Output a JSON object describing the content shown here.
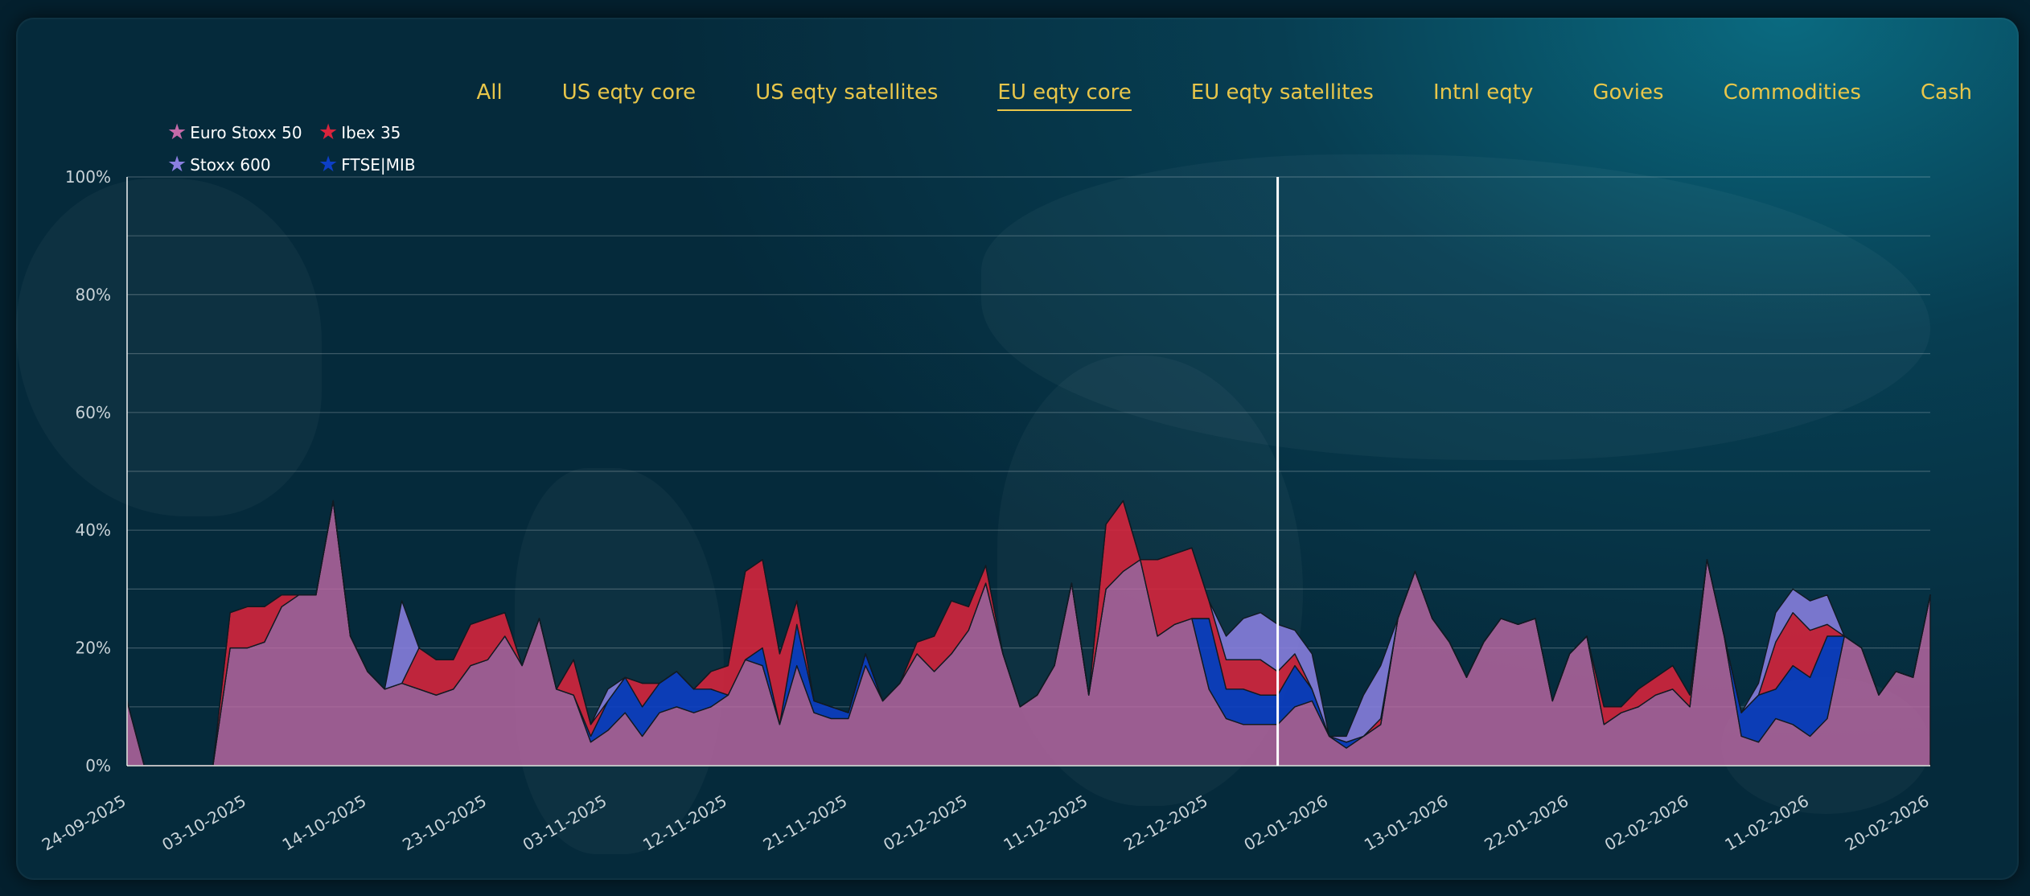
{
  "tabs": [
    {
      "label": "All",
      "active": false
    },
    {
      "label": "US eqty core",
      "active": false
    },
    {
      "label": "US eqty satellites",
      "active": false
    },
    {
      "label": "EU eqty core",
      "active": true
    },
    {
      "label": "EU eqty satellites",
      "active": false
    },
    {
      "label": "Intnl eqty",
      "active": false
    },
    {
      "label": "Govies",
      "active": false
    },
    {
      "label": "Commodities",
      "active": false
    },
    {
      "label": "Cash",
      "active": false
    }
  ],
  "colors": {
    "tab_text": "#e8c64a",
    "euro_stoxx_50": "#c46aa8",
    "ibex_35": "#d9243c",
    "stoxx_600": "#8a7fe0",
    "ftse_mib": "#0d3fc6",
    "marker_line": "#ffffff"
  },
  "chart_data": {
    "type": "area",
    "stacked": true,
    "ylim": [
      0,
      100
    ],
    "y_ticks": [
      "0%",
      "20%",
      "40%",
      "60%",
      "80%",
      "100%"
    ],
    "x_tick_labels": [
      "24-09-2025",
      "03-10-2025",
      "14-10-2025",
      "23-10-2025",
      "03-11-2025",
      "12-11-2025",
      "21-11-2025",
      "02-12-2025",
      "11-12-2025",
      "22-12-2025",
      "02-01-2026",
      "13-01-2026",
      "22-01-2026",
      "02-02-2026",
      "11-02-2026",
      "20-02-2026"
    ],
    "vertical_marker": "02-01-2026",
    "legend": [
      {
        "name": "Euro Stoxx 50",
        "icon": "star"
      },
      {
        "name": "Ibex 35",
        "icon": "star"
      },
      {
        "name": "Stoxx 600",
        "icon": "star"
      },
      {
        "name": "FTSE|MIB",
        "icon": "star"
      }
    ],
    "series": [
      {
        "name": "Euro Stoxx 50",
        "values": [
          11,
          0,
          0,
          0,
          0,
          0,
          20,
          20,
          21,
          27,
          29,
          29,
          45,
          22,
          16,
          13,
          14,
          13,
          12,
          13,
          17,
          18,
          22,
          17,
          25,
          13,
          12,
          4,
          6,
          9,
          5,
          9,
          10,
          9,
          10,
          12,
          18,
          17,
          7,
          17,
          9,
          8,
          8,
          17,
          11,
          14,
          19,
          16,
          19,
          23,
          31,
          19,
          10,
          12,
          17,
          31,
          12,
          30,
          33,
          35,
          22,
          24,
          25,
          13,
          8,
          7,
          7,
          7,
          10,
          11,
          5,
          3,
          5,
          7,
          25,
          33,
          25,
          21,
          15,
          21,
          25,
          24,
          25,
          11,
          19,
          22,
          7,
          9,
          10,
          12,
          13,
          10,
          35,
          22,
          5,
          4,
          8,
          7,
          5,
          8,
          22,
          20,
          12,
          16,
          15,
          29
        ]
      },
      {
        "name": "FTSE|MIB",
        "values": [
          0,
          0,
          0,
          0,
          0,
          0,
          0,
          0,
          0,
          0,
          0,
          0,
          0,
          0,
          0,
          0,
          0,
          0,
          0,
          0,
          0,
          0,
          0,
          0,
          0,
          0,
          0,
          1,
          5,
          6,
          5,
          5,
          6,
          4,
          3,
          0,
          0,
          3,
          0,
          7,
          2,
          2,
          1,
          2,
          0,
          0,
          0,
          0,
          0,
          0,
          0,
          0,
          0,
          0,
          0,
          0,
          0,
          0,
          0,
          0,
          0,
          0,
          0,
          12,
          5,
          6,
          5,
          5,
          7,
          2,
          0,
          1,
          0,
          0,
          0,
          0,
          0,
          0,
          0,
          0,
          0,
          0,
          0,
          0,
          0,
          0,
          0,
          0,
          0,
          0,
          0,
          0,
          0,
          0,
          4,
          8,
          5,
          10,
          10,
          14,
          0,
          0,
          0,
          0,
          0,
          0
        ]
      },
      {
        "name": "Ibex 35",
        "values": [
          0,
          0,
          0,
          0,
          0,
          0,
          6,
          7,
          6,
          2,
          0,
          0,
          0,
          0,
          0,
          0,
          0,
          7,
          6,
          5,
          7,
          7,
          4,
          0,
          0,
          0,
          6,
          2,
          0,
          0,
          4,
          0,
          0,
          0,
          3,
          5,
          15,
          15,
          12,
          4,
          0,
          0,
          0,
          0,
          0,
          0,
          2,
          6,
          9,
          4,
          3,
          0,
          0,
          0,
          0,
          0,
          0,
          11,
          12,
          0,
          13,
          12,
          12,
          3,
          5,
          5,
          6,
          4,
          2,
          0,
          0,
          0,
          0,
          1,
          0,
          0,
          0,
          0,
          0,
          0,
          0,
          0,
          0,
          0,
          0,
          0,
          3,
          1,
          3,
          3,
          4,
          2,
          0,
          0,
          0,
          0,
          8,
          9,
          8,
          2,
          0,
          0,
          0,
          0,
          0,
          0
        ]
      },
      {
        "name": "Stoxx 600",
        "values": [
          0,
          0,
          0,
          0,
          0,
          0,
          0,
          0,
          0,
          0,
          0,
          0,
          0,
          0,
          0,
          0,
          14,
          0,
          0,
          0,
          0,
          0,
          0,
          0,
          0,
          0,
          0,
          0,
          2,
          0,
          0,
          0,
          0,
          0,
          0,
          0,
          0,
          0,
          0,
          0,
          0,
          0,
          0,
          0,
          0,
          0,
          0,
          0,
          0,
          0,
          0,
          0,
          0,
          0,
          0,
          0,
          0,
          0,
          0,
          0,
          0,
          0,
          0,
          0,
          4,
          7,
          8,
          8,
          4,
          6,
          0,
          1,
          7,
          9,
          0,
          0,
          0,
          0,
          0,
          0,
          0,
          0,
          0,
          0,
          0,
          0,
          0,
          0,
          0,
          0,
          0,
          0,
          0,
          0,
          0,
          2,
          5,
          4,
          5,
          5,
          0,
          0,
          0,
          0,
          0,
          0
        ]
      }
    ]
  }
}
